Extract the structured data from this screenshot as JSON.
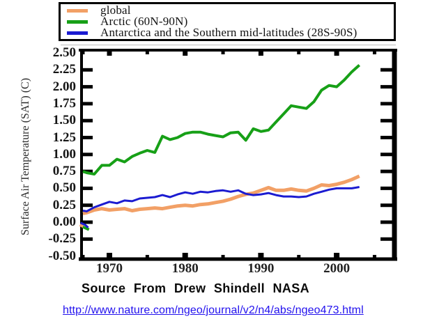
{
  "legend": {
    "items": [
      {
        "label": "global",
        "color": "#F2A066"
      },
      {
        "label": "Arctic (60N-90N)",
        "color": "#17A017"
      },
      {
        "label": "Antarctica and the Southern mid-latitudes (28S-90S)",
        "color": "#1B1BD1"
      }
    ]
  },
  "y_axis": {
    "title": "Surface Air Temperature (SAT) (C)",
    "tick_labels": [
      "2.50",
      "2.25",
      "2.00",
      "1.75",
      "1.50",
      "1.25",
      "1.00",
      "0.75",
      "0.50",
      "0.25",
      "0.00",
      "-0.25",
      "-0.50"
    ]
  },
  "x_axis": {
    "tick_labels": [
      "1970",
      "1980",
      "1990",
      "2000"
    ]
  },
  "captions": {
    "source": "Source From Drew Shindell NASA",
    "link": "http://www.nature.com/ngeo/journal/v2/n4/abs/ngeo473.html"
  },
  "chart_data": {
    "type": "line",
    "title": "",
    "xlabel": "",
    "ylabel": "Surface Air Temperature (SAT) (C)",
    "ylim": [
      -0.5,
      2.5
    ],
    "xlim": [
      1966,
      2008
    ],
    "grid": false,
    "legend_position": "top-outside",
    "y_ticks": [
      2.5,
      2.25,
      2.0,
      1.75,
      1.5,
      1.25,
      1.0,
      0.75,
      0.5,
      0.25,
      0.0,
      -0.25,
      -0.5
    ],
    "x_ticks_major": [
      1970,
      1980,
      1990,
      2000
    ],
    "x_ticks_minor": [
      1966.5,
      1975,
      1985,
      1995,
      2005
    ],
    "x": [
      1966.5,
      1967,
      1968,
      1969,
      1970,
      1971,
      1972,
      1973,
      1974,
      1975,
      1976,
      1977,
      1978,
      1979,
      1980,
      1981,
      1982,
      1983,
      1984,
      1985,
      1986,
      1987,
      1988,
      1989,
      1990,
      1991,
      1992,
      1993,
      1994,
      1995,
      1996,
      1997,
      1998,
      1999,
      2000,
      2001,
      2002,
      2003
    ],
    "series": [
      {
        "name": "global",
        "color": "#F2A066",
        "width": 5,
        "values": [
          0.13,
          0.14,
          0.18,
          0.2,
          0.18,
          0.19,
          0.2,
          0.17,
          0.19,
          0.2,
          0.21,
          0.2,
          0.22,
          0.24,
          0.25,
          0.24,
          0.26,
          0.27,
          0.29,
          0.31,
          0.34,
          0.38,
          0.41,
          0.43,
          0.47,
          0.51,
          0.47,
          0.47,
          0.49,
          0.47,
          0.46,
          0.5,
          0.55,
          0.54,
          0.56,
          0.59,
          0.63,
          0.68
        ]
      },
      {
        "name": "Arctic (60N-90N)",
        "color": "#17A017",
        "width": 4,
        "values": [
          0.75,
          0.73,
          0.71,
          0.84,
          0.84,
          0.93,
          0.89,
          0.97,
          1.02,
          1.06,
          1.03,
          1.27,
          1.22,
          1.25,
          1.31,
          1.33,
          1.33,
          1.3,
          1.28,
          1.26,
          1.32,
          1.33,
          1.21,
          1.38,
          1.34,
          1.36,
          1.48,
          1.6,
          1.72,
          1.7,
          1.68,
          1.78,
          1.95,
          2.02,
          2.0,
          2.1,
          2.22,
          2.32
        ]
      },
      {
        "name": "Antarctica and the Southern mid-latitudes (28S-90S)",
        "color": "#1B1BD1",
        "width": 3,
        "values": [
          0.17,
          0.16,
          0.22,
          0.26,
          0.3,
          0.28,
          0.32,
          0.31,
          0.35,
          0.36,
          0.37,
          0.4,
          0.37,
          0.41,
          0.44,
          0.42,
          0.45,
          0.44,
          0.46,
          0.47,
          0.45,
          0.47,
          0.42,
          0.4,
          0.41,
          0.43,
          0.4,
          0.38,
          0.38,
          0.37,
          0.38,
          0.42,
          0.45,
          0.48,
          0.5,
          0.5,
          0.5,
          0.52
        ]
      }
    ],
    "detached_start_fragments": [
      {
        "color": "#F2A066",
        "width": 4,
        "points": [
          [
            1966.1,
            -0.04
          ],
          [
            1966.6,
            -0.07
          ]
        ]
      },
      {
        "color": "#17A017",
        "width": 4,
        "points": [
          [
            1966.5,
            -0.07
          ],
          [
            1967.3,
            -0.11
          ]
        ]
      },
      {
        "color": "#1B1BD1",
        "width": 3,
        "points": [
          [
            1966.2,
            -0.01
          ],
          [
            1966.8,
            -0.04
          ],
          [
            1967.2,
            -0.08
          ]
        ]
      }
    ]
  }
}
